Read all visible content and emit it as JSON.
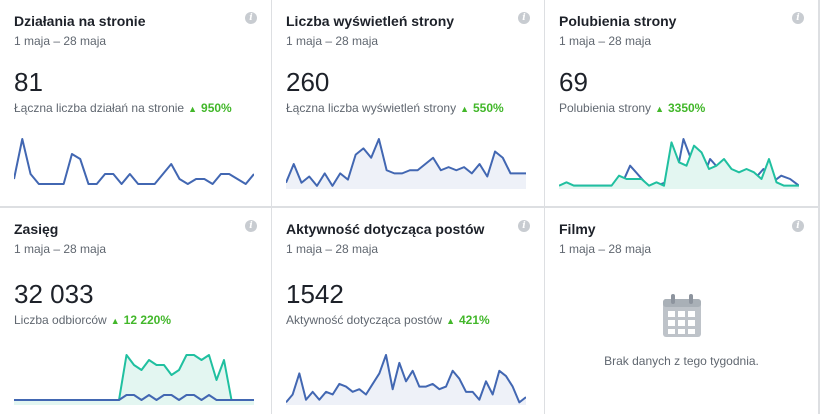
{
  "cards": [
    {
      "title": "Działania na stronie",
      "date": "1 maja – 28 maja",
      "value": "81",
      "label": "Łączna liczba działań na stronie",
      "change": "950%",
      "series": [
        {
          "color": "#4267b2",
          "fill": false,
          "values": [
            2,
            10,
            3,
            1,
            1,
            1,
            1,
            7,
            6,
            1,
            1,
            3,
            3,
            1,
            3,
            1,
            1,
            1,
            3,
            5,
            2,
            1,
            2,
            2,
            1,
            3,
            3,
            2,
            1,
            3
          ]
        }
      ]
    },
    {
      "title": "Liczba wyświetleń strony",
      "date": "1 maja – 28 maja",
      "value": "260",
      "label": "Łączna liczba wyświetleń strony",
      "change": "550%",
      "series": [
        {
          "color": "#4267b2",
          "fill": true,
          "values": [
            2,
            8,
            2,
            4,
            1,
            5,
            1,
            5,
            3,
            11,
            13,
            10,
            16,
            6,
            5,
            5,
            6,
            6,
            8,
            10,
            6,
            7,
            6,
            7,
            5,
            8,
            4,
            12,
            10,
            5,
            5,
            5
          ]
        }
      ]
    },
    {
      "title": "Polubienia strony",
      "date": "1 maja – 28 maja",
      "value": "69",
      "label": "Polubienia strony",
      "change": "3350%",
      "series": [
        {
          "color": "#4267b2",
          "fill": false,
          "values": [
            1,
            1,
            1,
            1,
            1,
            1,
            1,
            1,
            7,
            4,
            1,
            1,
            2,
            1,
            15,
            8,
            2,
            9,
            6,
            5,
            4,
            2,
            3,
            6,
            2,
            4,
            3,
            1
          ]
        },
        {
          "color": "#20c0a0",
          "fill": true,
          "values": [
            1,
            2,
            1,
            1,
            1,
            1,
            1,
            1,
            4,
            3,
            3,
            3,
            1,
            2,
            1,
            14,
            8,
            7,
            13,
            11,
            6,
            7,
            9,
            6,
            5,
            6,
            5,
            3,
            9,
            2,
            1,
            1,
            1
          ]
        }
      ]
    },
    {
      "title": "Zasięg",
      "date": "1 maja – 28 maja",
      "value": "32 033",
      "label": "Liczba odbiorców",
      "change": "12 220%",
      "series": [
        {
          "color": "#20c0a0",
          "fill": true,
          "values": [
            1,
            1,
            1,
            1,
            1,
            1,
            1,
            1,
            1,
            1,
            1,
            1,
            1,
            1,
            1,
            10,
            8,
            7,
            9,
            8,
            8,
            6,
            7,
            10,
            10,
            9,
            10,
            5,
            9,
            1,
            1,
            1,
            1
          ]
        },
        {
          "color": "#4267b2",
          "fill": false,
          "values": [
            1,
            1,
            1,
            1,
            1,
            1,
            1,
            1,
            1,
            1,
            1,
            1,
            1,
            1,
            1,
            2,
            2,
            1,
            2,
            1,
            2,
            2,
            1,
            2,
            2,
            1,
            2,
            1,
            1,
            1,
            1,
            1,
            1
          ]
        }
      ]
    },
    {
      "title": "Aktywność dotycząca postów",
      "date": "1 maja – 28 maja",
      "value": "1542",
      "label": "Aktywność dotycząca postów",
      "change": "421%",
      "series": [
        {
          "color": "#4267b2",
          "fill": true,
          "values": [
            1,
            4,
            12,
            2,
            5,
            2,
            5,
            4,
            8,
            7,
            5,
            6,
            4,
            8,
            12,
            19,
            6,
            16,
            9,
            13,
            7,
            7,
            8,
            6,
            7,
            13,
            10,
            5,
            5,
            2,
            9,
            4,
            13,
            11,
            7,
            1,
            3
          ]
        }
      ]
    },
    {
      "title": "Filmy",
      "date": "1 maja – 28 maja",
      "empty": "Brak danych z tego tygodnia."
    }
  ]
}
